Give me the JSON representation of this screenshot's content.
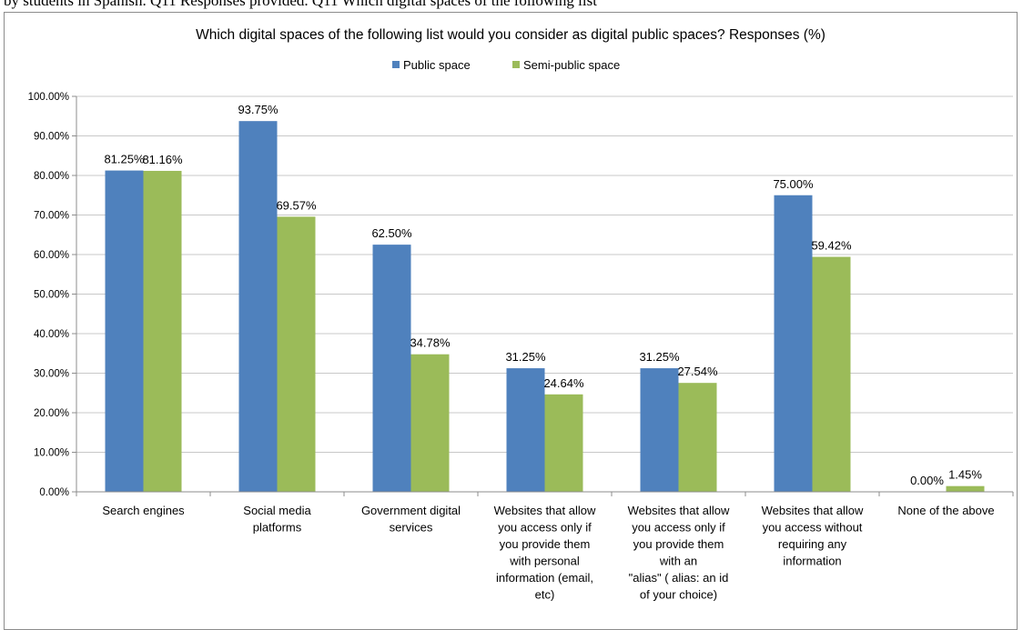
{
  "header_strip_text": "by students in Spanish. Q11 Responses provided. Q11 Which digital spaces of the following list",
  "chart_data": {
    "type": "bar",
    "title": "Which digital spaces of the following list would you consider as digital public spaces? Responses (%)",
    "xlabel": "",
    "ylabel": "",
    "categories": [
      [
        "Search engines"
      ],
      [
        "Social media",
        "platforms"
      ],
      [
        "Government digital",
        "services"
      ],
      [
        "Websites that allow",
        "you access only if",
        "you provide them",
        "with personal",
        "information (email,",
        "etc)"
      ],
      [
        "Websites that allow",
        "you access only if",
        "you provide them",
        "with an",
        "\"alias\" ( alias: an id",
        "of your choice)"
      ],
      [
        "Websites that allow",
        "you access without",
        "requiring any",
        "information"
      ],
      [
        "None of the above"
      ]
    ],
    "series": [
      {
        "name": "Public space",
        "color": "#4f81bd",
        "values": [
          81.25,
          93.75,
          62.5,
          31.25,
          31.25,
          75.0,
          0.0
        ],
        "labels": [
          "81.25%",
          "93.75%",
          "62.50%",
          "31.25%",
          "31.25%",
          "75.00%",
          "0.00%"
        ]
      },
      {
        "name": "Semi-public space",
        "color": "#9bbb59",
        "values": [
          81.16,
          69.57,
          34.78,
          24.64,
          27.54,
          59.42,
          1.45
        ],
        "labels": [
          "81.16%",
          "69.57%",
          "34.78%",
          "24.64%",
          "27.54%",
          "59.42%",
          "1.45%"
        ]
      }
    ],
    "ylim": [
      0,
      100
    ],
    "yticks": [
      "0.00%",
      "10.00%",
      "20.00%",
      "30.00%",
      "40.00%",
      "50.00%",
      "60.00%",
      "70.00%",
      "80.00%",
      "90.00%",
      "100.00%"
    ],
    "grid": true,
    "legend_position": "top-center"
  }
}
